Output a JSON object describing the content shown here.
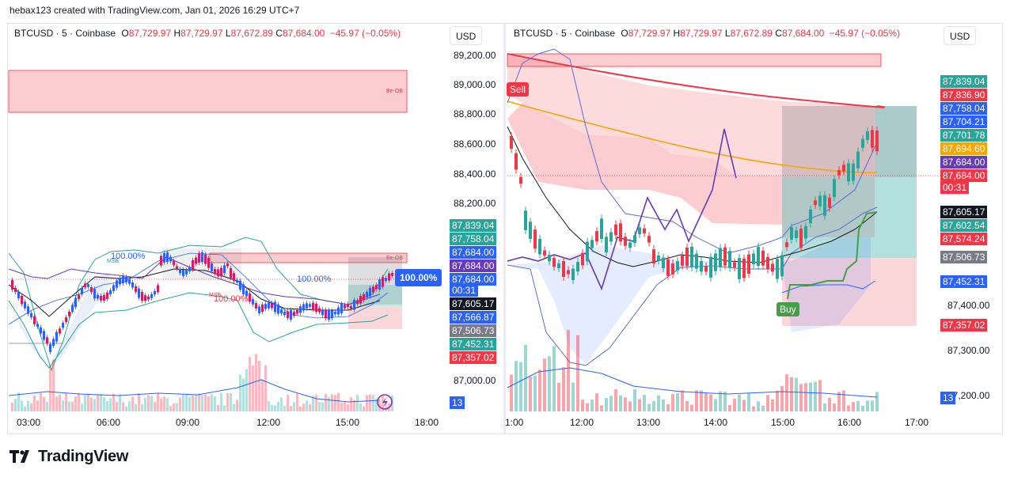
{
  "caption": "hebax123 created with TradingView.com, Jan 01, 2026 16:29 UTC+7",
  "brand": {
    "name": "TradingView",
    "icon": "tradingview-logo"
  },
  "currency_label": "USD",
  "colors": {
    "up": "#26a69a",
    "down": "#f23645",
    "blue": "#2962ff",
    "purple": "#673ab7",
    "orange": "#f7a600",
    "dark": "#131722"
  },
  "legend": {
    "symbol": "BTCUSD · 5 · Coinbase",
    "o_label": "O",
    "o": "87,729.97",
    "h_label": "H",
    "h": "87,729.97",
    "l_label": "L",
    "l": "87,672.89",
    "c_label": "C",
    "c": "87,684.00",
    "change": "−45.97 (−0.05%)"
  },
  "left_chart": {
    "y_ticks": [
      "89,200.00",
      "89,000.00",
      "88,800.00",
      "88,600.00",
      "88,400.00",
      "88,200.00",
      "87,000.00"
    ],
    "x_ticks": [
      "03:00",
      "06:00",
      "09:00",
      "12:00",
      "15:00",
      "18:00"
    ],
    "price_tags": [
      {
        "text": "87,839.04",
        "color": "#26a69a"
      },
      {
        "text": "87,758.04",
        "color": "#26a69a"
      },
      {
        "text": "87,684.00",
        "color": "#2962ff"
      },
      {
        "text": "87,684.00",
        "color": "#673ab7"
      },
      {
        "text": "87,684.00",
        "color": "#2962ff"
      },
      {
        "text": "00:31",
        "color": "#2962ff"
      },
      {
        "text": "87,605.17",
        "color": "#131722"
      },
      {
        "text": "87,566.87",
        "color": "#2962ff"
      },
      {
        "text": "87,506.73",
        "color": "#787b86"
      },
      {
        "text": "87,452.31",
        "color": "#26a69a"
      },
      {
        "text": "87,357.02",
        "color": "#f23645"
      }
    ],
    "volume_tag": "13",
    "badge": "100.00%",
    "annotations": [
      "100.00%",
      "100.00%",
      "100.00%",
      "Be-OB",
      "Be-OB",
      "MSB",
      "MSB"
    ]
  },
  "right_chart": {
    "y_ticks": [
      "87,400.00",
      "87,300.00",
      "87,200.00"
    ],
    "x_ticks": [
      "1:00",
      "12:00",
      "13:00",
      "14:00",
      "15:00",
      "16:00",
      "17:00"
    ],
    "price_tags": [
      {
        "text": "87,839.04",
        "color": "#26a69a"
      },
      {
        "text": "87,836.90",
        "color": "#f23645"
      },
      {
        "text": "87,758.04",
        "color": "#2962ff"
      },
      {
        "text": "87,704.21",
        "color": "#2962ff"
      },
      {
        "text": "87,701.78",
        "color": "#26a69a"
      },
      {
        "text": "87,694.60",
        "color": "#f7a600"
      },
      {
        "text": "87,684.00",
        "color": "#673ab7"
      },
      {
        "text": "87,684.00",
        "color": "#f23645"
      },
      {
        "text": "00:31",
        "color": "#f23645"
      },
      {
        "text": "87,605.17",
        "color": "#131722"
      },
      {
        "text": "87,602.54",
        "color": "#26a69a"
      },
      {
        "text": "87,574.24",
        "color": "#f23645"
      },
      {
        "text": "87,506.73",
        "color": "#787b86"
      },
      {
        "text": "87,452.31",
        "color": "#2962ff"
      },
      {
        "text": "87,357.02",
        "color": "#f23645"
      }
    ],
    "volume_tag": "13",
    "sell_label": "Sell",
    "buy_label": "Buy"
  }
}
